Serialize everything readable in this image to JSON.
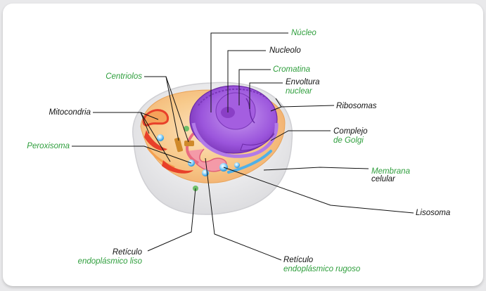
{
  "labels": {
    "nucleo": "Núcleo",
    "nucleolo": "Nucleolo",
    "cromatina": "Cromatina",
    "envoltura_1": "Envoltura",
    "envoltura_2": "nuclear",
    "ribosomas": "Ribosomas",
    "centriolos": "Centriolos",
    "mitocondria": "Mitocondria",
    "complejo_1": "Complejo",
    "complejo_2": "de Golgi",
    "peroxisoma": "Peroxisoma",
    "membrana_1": "Membrana",
    "membrana_2": "celular",
    "lisosoma": "Lisosoma",
    "ret_liso_1": "Retículo",
    "ret_liso_2": "endoplásmico liso",
    "ret_rugoso_1": "Retículo",
    "ret_rugoso_2": "endoplásmico rugoso"
  },
  "colors": {
    "label_green": "#2e9e3c",
    "label_black": "#111111",
    "nucleus": "#9b4fd6",
    "cytoplasm": "#f6c27a",
    "membrane": "#e8e8ea",
    "mitochondria": "#e8402a",
    "er_rough": "#f08a9a",
    "lysosome": "#39a9e6"
  }
}
